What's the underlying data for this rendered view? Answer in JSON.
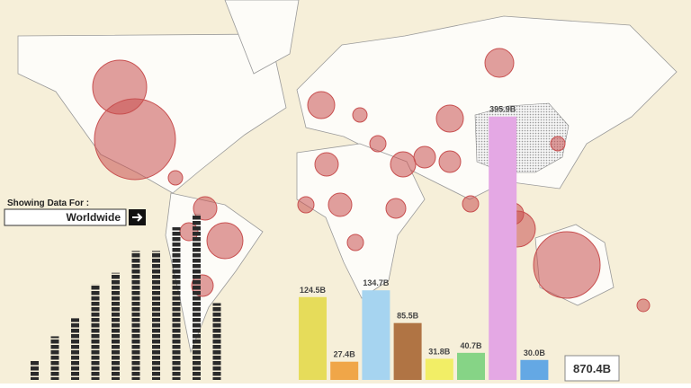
{
  "filter": {
    "label": "Showing Data For :",
    "selection": "Worldwide"
  },
  "chart_data": [
    {
      "type": "bar",
      "categories": [
        null,
        null,
        null,
        null,
        null,
        null,
        null,
        null,
        null,
        null
      ],
      "values": [
        21,
        46,
        65,
        101,
        113,
        136,
        136,
        161,
        175,
        81
      ],
      "color": "#2a2a2a",
      "ylim": [
        0,
        180
      ]
    },
    {
      "type": "bar",
      "categories": [
        null,
        null,
        null,
        null,
        null,
        null,
        null,
        null
      ],
      "values": [
        124.5,
        27.4,
        134.7,
        85.5,
        31.8,
        40.7,
        395.9,
        30.0
      ],
      "value_labels": [
        "124.5B",
        "27.4B",
        "134.7B",
        "85.5B",
        "31.8B",
        "40.7B",
        "395.9B",
        "30.0B"
      ],
      "colors": [
        "#e6dc5a",
        "#f0a648",
        "#a6d4f0",
        "#b07444",
        "#f2ee66",
        "#86d486",
        "#e4a8e4",
        "#64a8e4"
      ],
      "ylim": [
        0,
        405
      ]
    }
  ],
  "total": "870.4B",
  "map": {
    "bubble_color": "#c85050",
    "bubbles": [
      30,
      45,
      16,
      15,
      15,
      13,
      14,
      12,
      12,
      20,
      13,
      37,
      20,
      12,
      11,
      13,
      9,
      9,
      10,
      12,
      8,
      9,
      8,
      9,
      8,
      7
    ]
  }
}
